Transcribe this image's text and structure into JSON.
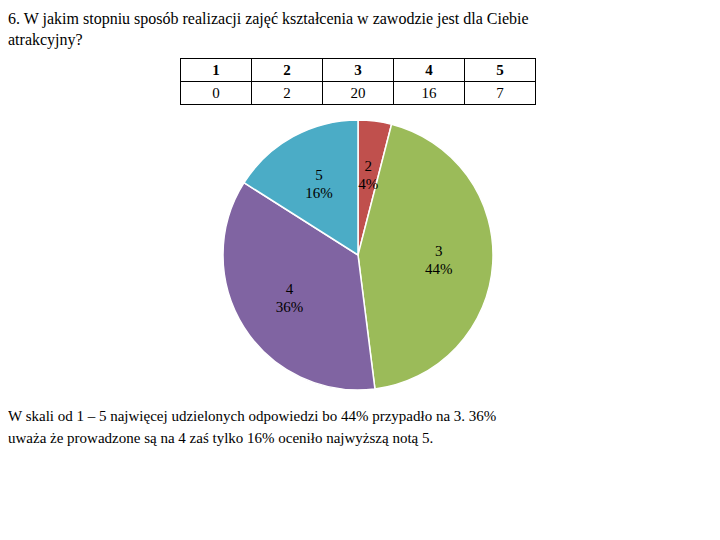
{
  "chart_data": [
    {
      "type": "table",
      "title": "6.  W jakim stopniu sposób realizacji zajęć kształcenia w zawodzie jest dla Ciebie\natrakcyjny?",
      "categories": [
        "1",
        "2",
        "3",
        "4",
        "5"
      ],
      "values": [
        0,
        2,
        20,
        16,
        7
      ]
    },
    {
      "type": "pie",
      "categories": [
        "2",
        "3",
        "4",
        "5"
      ],
      "values": [
        4,
        44,
        36,
        16
      ],
      "value_labels": [
        "4%",
        "44%",
        "36%",
        "16%"
      ],
      "colors": [
        "#c0504d",
        "#9bbb59",
        "#8064a2",
        "#4bacc6"
      ],
      "data_labels": true,
      "annotations": [
        "W skali od 1 – 5 najwięcej udzielonych odpowiedzi bo 44% przypadło na 3. 36%\nuważa że prowadzone są na 4 zaś tylko 16% oceniło najwyższą notą 5."
      ]
    }
  ]
}
